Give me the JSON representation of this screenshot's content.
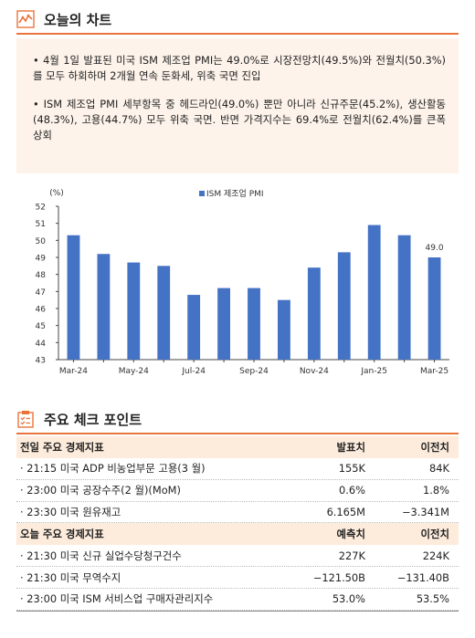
{
  "section1": {
    "title": "오늘의 차트"
  },
  "summary": {
    "bullet1": "• 4월 1일 발표된 미국 ISM 제조업 PMI는 49.0%로 시장전망치(49.5%)와 전월치(50.3%)를 모두 하회하며 2개월 연속 둔화세, 위축 국면 진입",
    "bullet2": "• ISM 제조업 PMI 세부항목 중 헤드라인(49.0%) 뿐만 아니라 신규주문(45.2%), 생산활동(48.3%), 고용(44.7%) 모두 위축 국면. 반면 가격지수는 69.4%로 전월치(62.4%)를 큰폭 상회"
  },
  "chart_data": {
    "type": "bar",
    "unit_label": "(%)",
    "legend": "ISM 제조업 PMI",
    "legend_position": "top-center",
    "color": "#4472c4",
    "categories": [
      "Mar-24",
      "Apr-24",
      "May-24",
      "Jun-24",
      "Jul-24",
      "Aug-24",
      "Sep-24",
      "Oct-24",
      "Nov-24",
      "Dec-24",
      "Jan-25",
      "Feb-25",
      "Mar-25"
    ],
    "values": [
      50.3,
      49.2,
      48.7,
      48.5,
      46.8,
      47.2,
      47.2,
      46.5,
      48.4,
      49.3,
      50.9,
      50.3,
      49.0
    ],
    "x_tick_labels": [
      "Mar-24",
      "May-24",
      "Jul-24",
      "Sep-24",
      "Nov-24",
      "Jan-25",
      "Mar-25"
    ],
    "y_ticks": [
      43,
      44,
      45,
      46,
      47,
      48,
      49,
      50,
      51,
      52
    ],
    "ylim": [
      43,
      52
    ],
    "data_label": "49.0",
    "grid": false
  },
  "section2": {
    "title": "주요 체크 포인트"
  },
  "table1": {
    "headers": [
      "전일 주요 경제지표",
      "발표치",
      "이전치"
    ],
    "rows": [
      [
        "· 21:15 미국 ADP 비농업부문 고용(3 월)",
        "155K",
        "84K"
      ],
      [
        "· 23:00 미국 공장수주(2 월)(MoM)",
        "0.6%",
        "1.8%"
      ],
      [
        "· 23:30 미국 원유재고",
        "6.165M",
        "−3.341M"
      ]
    ]
  },
  "table2": {
    "headers": [
      "오늘 주요 경제지표",
      "예측치",
      "이전치"
    ],
    "rows": [
      [
        "· 21:30 미국 신규 실업수당청구건수",
        "227K",
        "224K"
      ],
      [
        "· 21:30 미국 무역수지",
        "−121.50B",
        "−131.40B"
      ],
      [
        "· 23:00 미국 ISM 서비스업 구매자관리지수",
        "53.0%",
        "53.5%"
      ]
    ]
  },
  "colors": {
    "accent": "#e8743b",
    "bar": "#4472c4",
    "box_bg": "#fdf3ea",
    "header_bg": "#fdecdc"
  }
}
